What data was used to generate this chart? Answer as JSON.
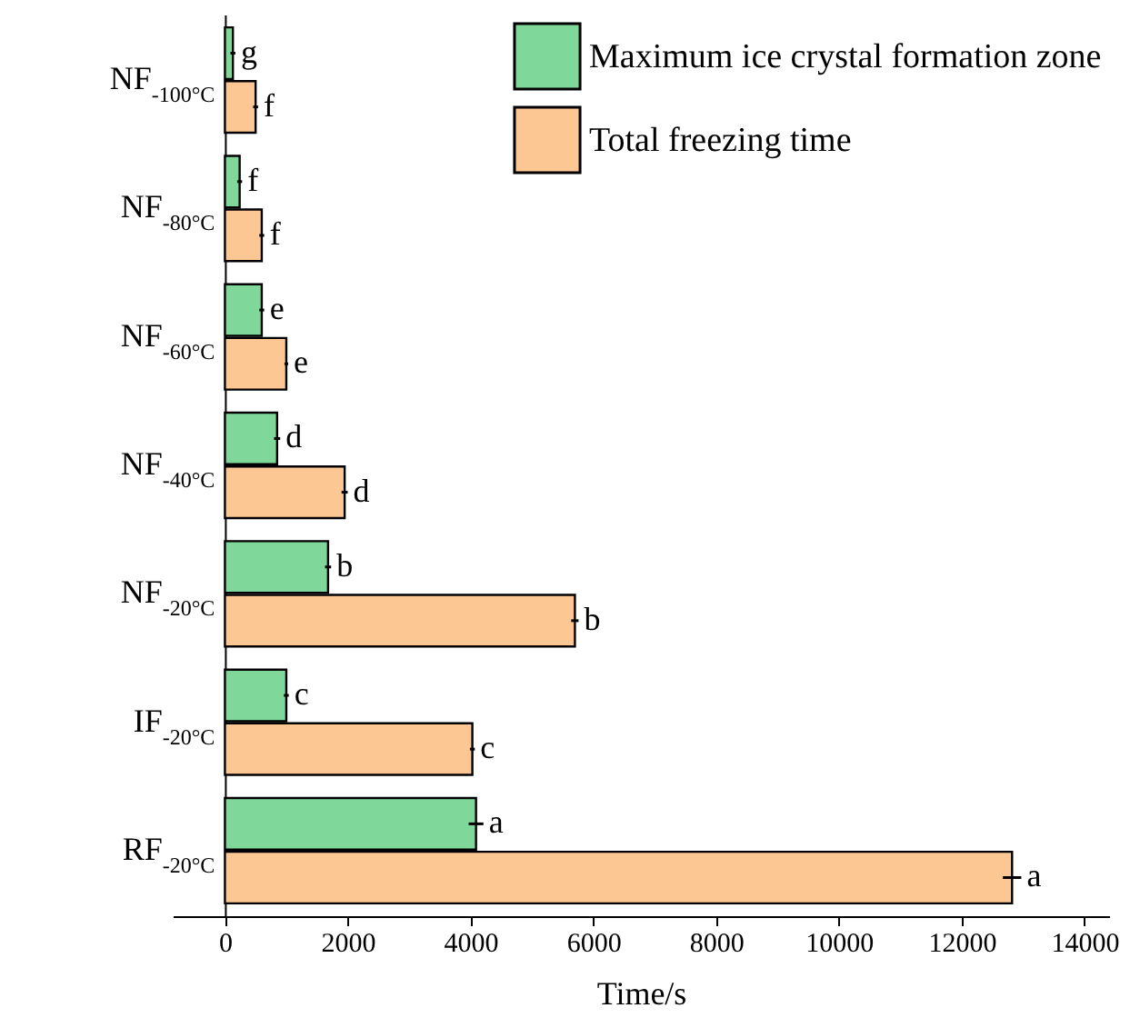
{
  "chart_data": {
    "type": "bar",
    "orientation": "horizontal",
    "xlabel": "Time/s",
    "categories": [
      "NF$_{-100°C}$",
      "NF$_{-80°C}$",
      "NF$_{-60°C}$",
      "NF$_{-40°C}$",
      "NF$_{-20°C}$",
      "IF$_{-20°C}$",
      "RF$_{-20°C}$"
    ],
    "series": [
      {
        "name": "Maximum ice crystal formation zone",
        "color": "#7fd89a",
        "values": [
          130,
          240,
          600,
          850,
          1680,
          1000,
          4090
        ],
        "errors": [
          40,
          40,
          40,
          50,
          50,
          40,
          120
        ],
        "value_labels": [
          "g",
          "f",
          "e",
          "d",
          "b",
          "c",
          "a"
        ]
      },
      {
        "name": "Total freezing time",
        "color": "#fdc794",
        "values": [
          500,
          600,
          1000,
          1950,
          5700,
          4030,
          12820
        ],
        "errors": [
          40,
          40,
          30,
          50,
          60,
          40,
          150
        ],
        "value_labels": [
          "f",
          "f",
          "e",
          "d",
          "b",
          "c",
          "a"
        ]
      }
    ],
    "xlim": [
      -850,
      14400
    ],
    "xticks": [
      0,
      2000,
      4000,
      6000,
      8000,
      10000,
      12000,
      14000
    ],
    "grid": false,
    "legend": "top right"
  }
}
